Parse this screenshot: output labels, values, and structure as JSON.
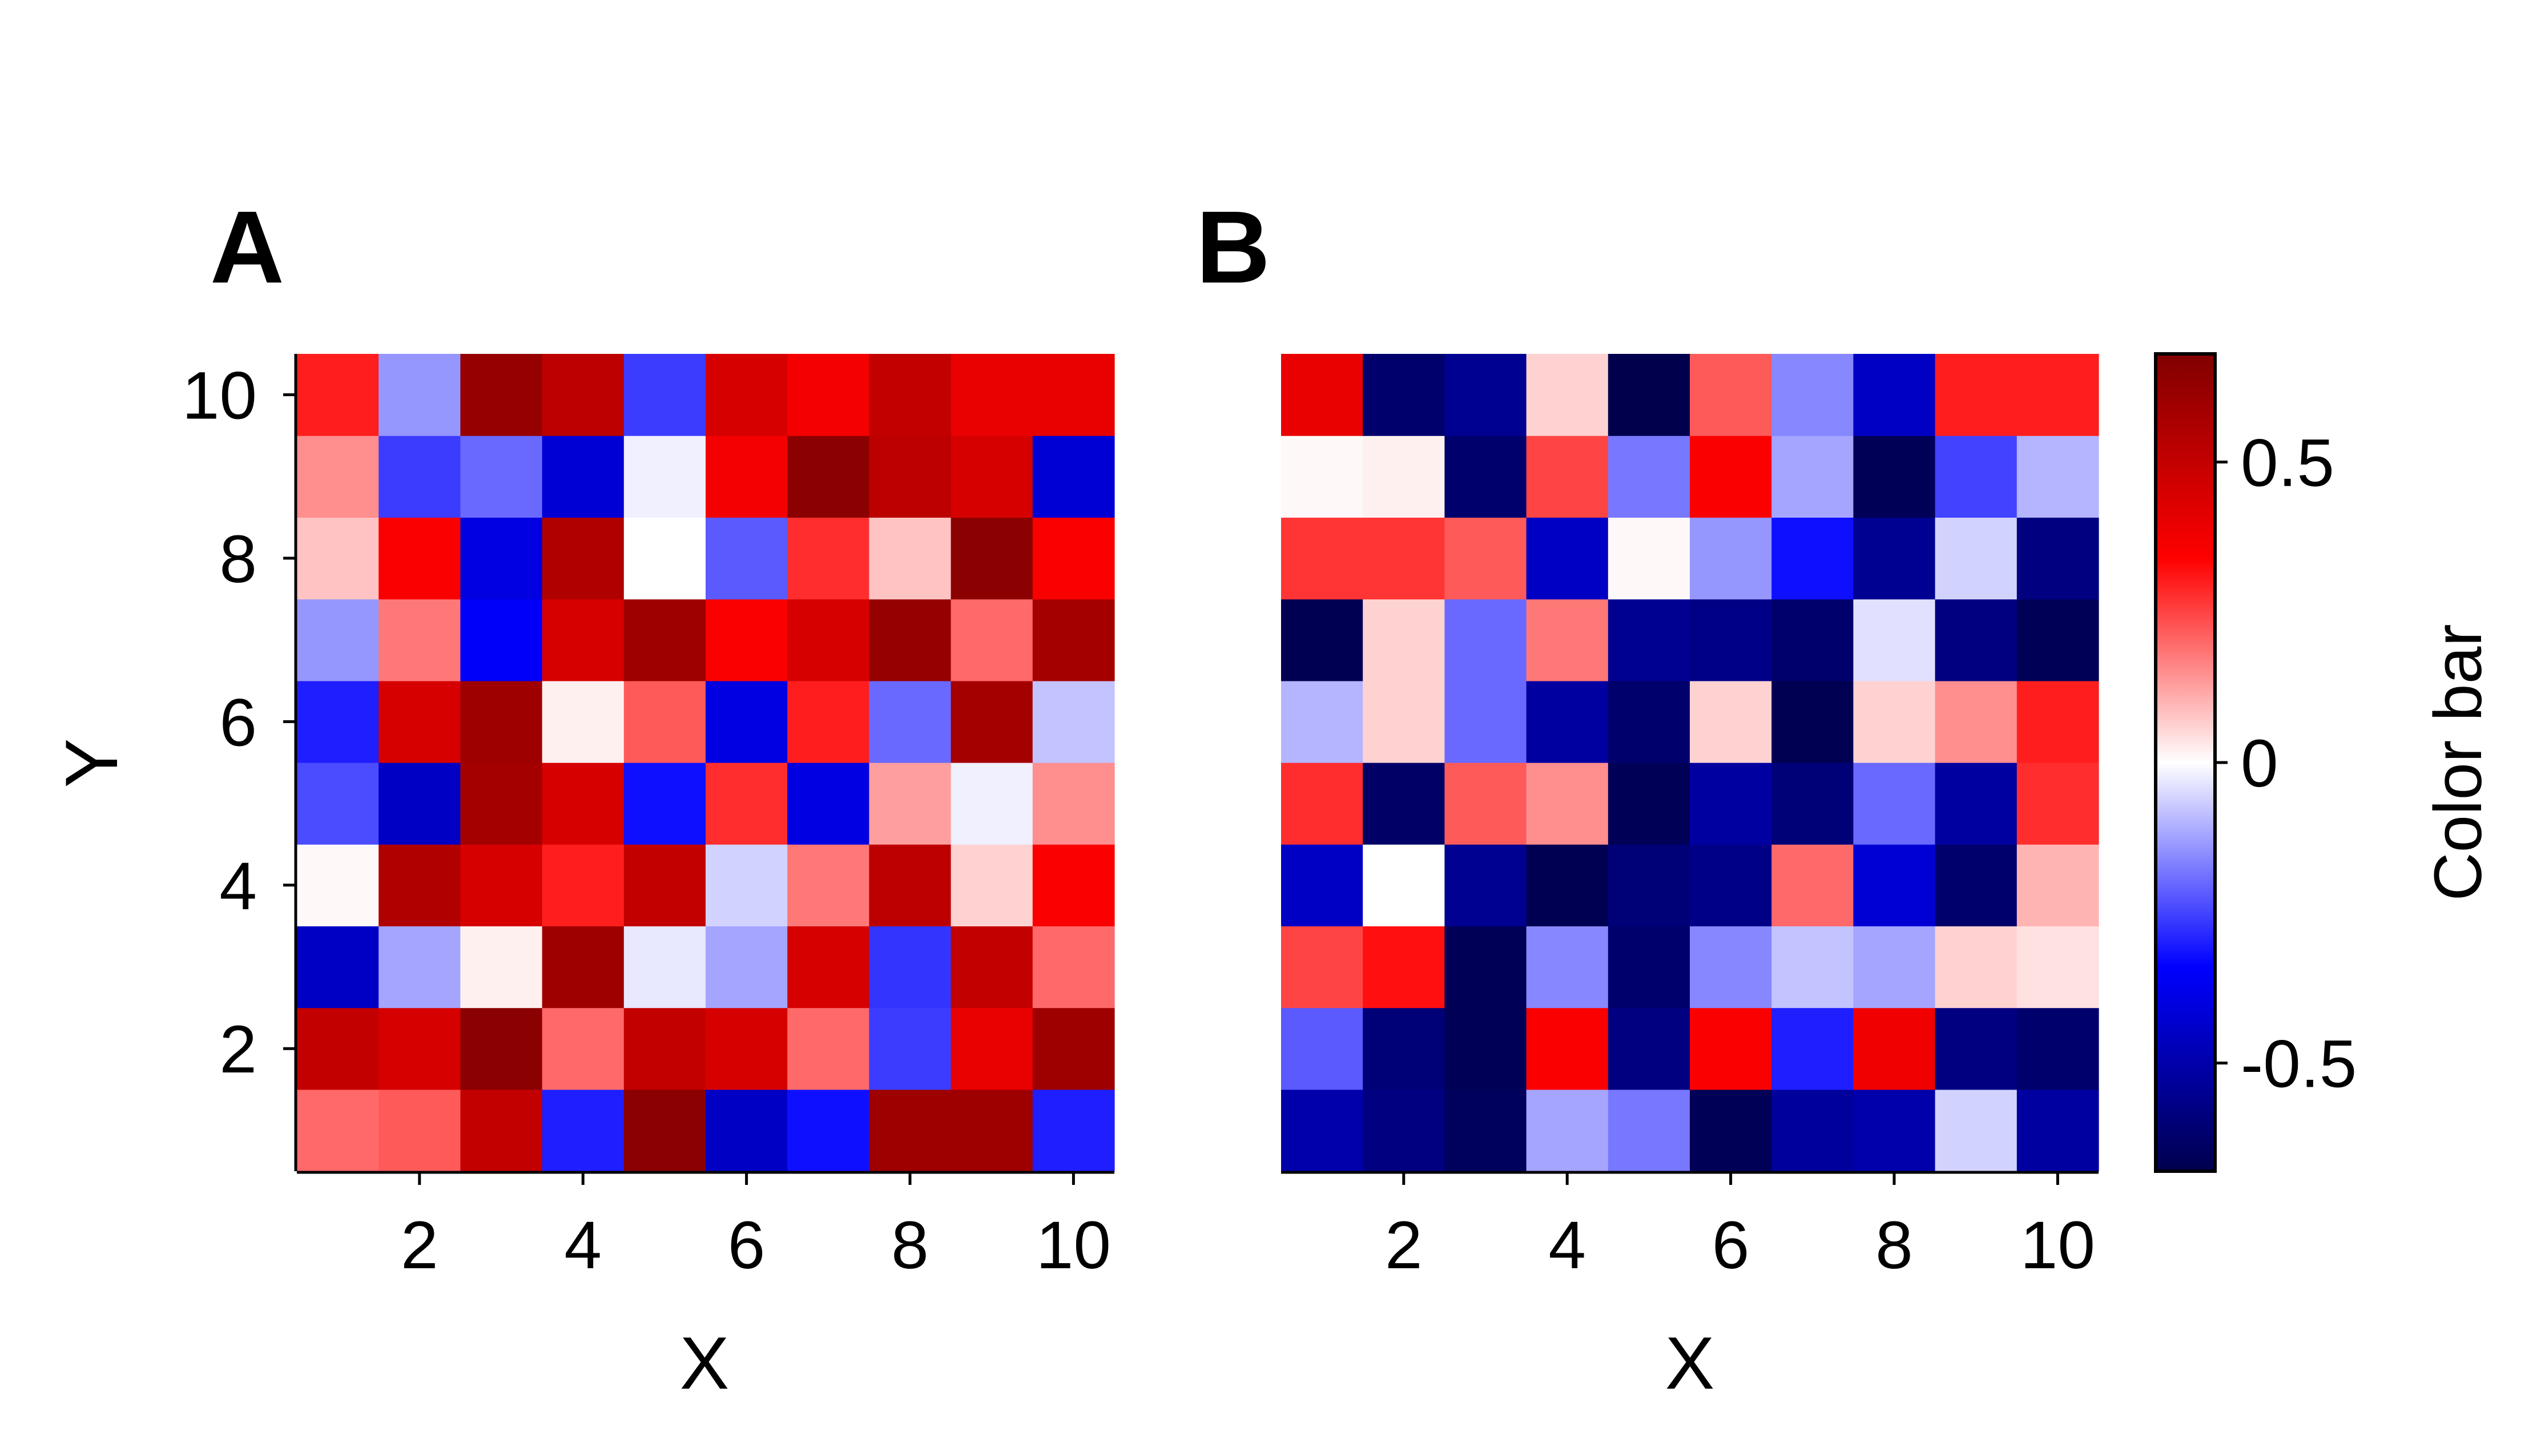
{
  "chart_data": [
    {
      "type": "heatmap",
      "panel_label": "A",
      "title": "",
      "xlabel": "X",
      "ylabel": "Y",
      "x": [
        1,
        2,
        3,
        4,
        5,
        6,
        7,
        8,
        9,
        10
      ],
      "y": [
        1,
        2,
        3,
        4,
        5,
        6,
        7,
        8,
        9,
        10
      ],
      "xlim": [
        0.5,
        10.5
      ],
      "ylim": [
        0.5,
        10.5
      ],
      "xticks": [
        2,
        4,
        6,
        8,
        10
      ],
      "yticks": [
        2,
        4,
        6,
        8,
        10
      ],
      "xtick_labels": [
        "2",
        "4",
        "6",
        "8",
        "10"
      ],
      "ytick_labels": [
        "2",
        "4",
        "6",
        "8",
        "10"
      ],
      "values_by_row_y1_to_y10": [
        [
          0.2,
          0.22,
          0.5,
          -0.3,
          0.65,
          -0.45,
          -0.32,
          0.6,
          0.6,
          -0.3
        ],
        [
          0.5,
          0.45,
          0.65,
          0.2,
          0.5,
          0.45,
          0.2,
          -0.26,
          0.4,
          0.6
        ],
        [
          -0.45,
          -0.12,
          0.02,
          0.6,
          -0.03,
          -0.12,
          0.45,
          -0.27,
          0.5,
          0.2
        ],
        [
          0.01,
          0.55,
          0.45,
          0.3,
          0.5,
          -0.06,
          0.18,
          0.52,
          0.06,
          0.35
        ],
        [
          -0.24,
          -0.45,
          0.58,
          0.45,
          -0.32,
          0.28,
          -0.4,
          0.13,
          -0.02,
          0.15
        ],
        [
          -0.3,
          0.45,
          0.6,
          0.02,
          0.22,
          -0.4,
          0.3,
          -0.2,
          0.58,
          -0.08
        ],
        [
          -0.14,
          0.18,
          -0.35,
          0.45,
          0.6,
          0.35,
          0.45,
          0.62,
          0.2,
          0.58
        ],
        [
          0.08,
          0.35,
          -0.4,
          0.55,
          0.0,
          -0.22,
          0.28,
          0.08,
          0.65,
          0.35
        ],
        [
          0.15,
          -0.26,
          -0.2,
          -0.42,
          -0.02,
          0.37,
          0.65,
          0.52,
          0.45,
          -0.42
        ],
        [
          0.3,
          -0.14,
          0.62,
          0.52,
          -0.26,
          0.45,
          0.37,
          0.5,
          0.4,
          0.4
        ]
      ]
    },
    {
      "type": "heatmap",
      "panel_label": "B",
      "title": "",
      "xlabel": "X",
      "ylabel": "",
      "x": [
        1,
        2,
        3,
        4,
        5,
        6,
        7,
        8,
        9,
        10
      ],
      "y": [
        1,
        2,
        3,
        4,
        5,
        6,
        7,
        8,
        9,
        10
      ],
      "xlim": [
        0.5,
        10.5
      ],
      "ylim": [
        0.5,
        10.5
      ],
      "xticks": [
        2,
        4,
        6,
        8,
        10
      ],
      "xtick_labels": [
        "2",
        "4",
        "6",
        "8",
        "10"
      ],
      "yticks": [],
      "values_by_row_y1_to_y10": [
        [
          -0.5,
          -0.58,
          -0.65,
          -0.12,
          -0.18,
          -0.66,
          -0.53,
          -0.5,
          -0.06,
          -0.52
        ],
        [
          -0.22,
          -0.6,
          -0.66,
          0.35,
          -0.58,
          0.35,
          -0.3,
          0.38,
          -0.58,
          -0.62
        ],
        [
          0.25,
          0.32,
          -0.66,
          -0.16,
          -0.62,
          -0.16,
          -0.08,
          -0.12,
          0.06,
          0.04
        ],
        [
          -0.45,
          0.0,
          -0.55,
          -0.67,
          -0.6,
          -0.57,
          0.2,
          -0.42,
          -0.62,
          0.1
        ],
        [
          0.28,
          -0.63,
          0.22,
          0.15,
          -0.66,
          -0.52,
          -0.6,
          -0.2,
          -0.52,
          0.28
        ],
        [
          -0.1,
          0.06,
          -0.2,
          -0.52,
          -0.62,
          0.06,
          -0.67,
          0.06,
          0.15,
          0.3
        ],
        [
          -0.67,
          0.06,
          -0.2,
          0.18,
          -0.55,
          -0.57,
          -0.62,
          -0.04,
          -0.58,
          -0.66
        ],
        [
          0.27,
          0.27,
          0.22,
          -0.45,
          0.01,
          -0.14,
          -0.32,
          -0.55,
          -0.06,
          -0.58
        ],
        [
          0.01,
          0.02,
          -0.62,
          0.25,
          -0.18,
          0.35,
          -0.12,
          -0.66,
          -0.25,
          -0.1
        ],
        [
          0.4,
          -0.62,
          -0.55,
          0.06,
          -0.68,
          0.22,
          -0.16,
          -0.45,
          0.3,
          0.3
        ]
      ]
    }
  ],
  "colorbar": {
    "label": "Color bar",
    "vmin": -0.68,
    "vmax": 0.68,
    "ticks": [
      -0.5,
      0,
      0.5
    ],
    "tick_labels": [
      "-0.5",
      "0",
      "0.5"
    ],
    "colormap": "seismic",
    "color_stops": [
      "#00004d",
      "#0000ff",
      "#ffffff",
      "#ff0000",
      "#800000"
    ]
  }
}
